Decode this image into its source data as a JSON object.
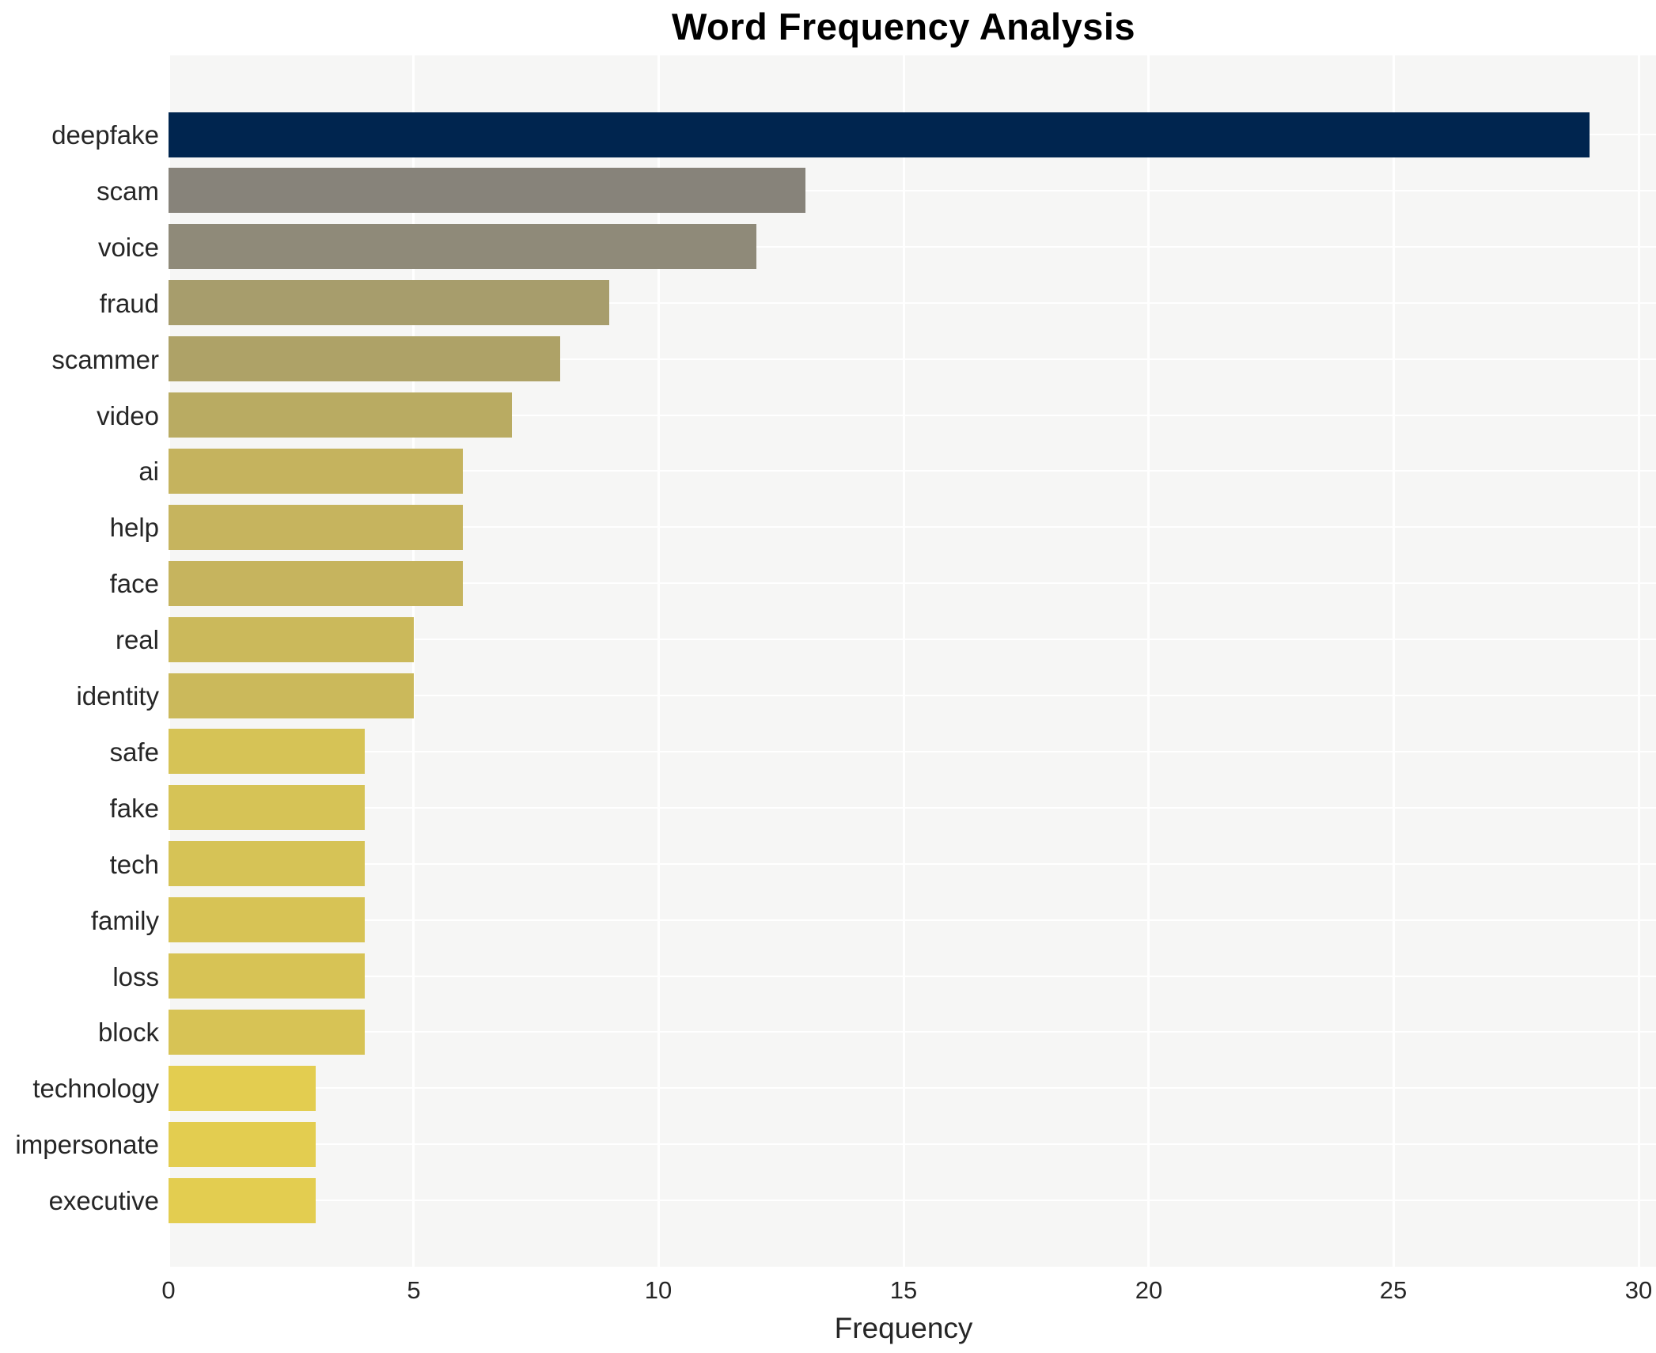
{
  "chart_data": {
    "type": "bar",
    "orientation": "horizontal",
    "title": "Word Frequency Analysis",
    "xlabel": "Frequency",
    "ylabel": "",
    "xlim": [
      0,
      30
    ],
    "xticks": [
      0,
      5,
      10,
      15,
      20,
      25,
      30
    ],
    "grid": true,
    "legend": false,
    "categories": [
      "deepfake",
      "scam",
      "voice",
      "fraud",
      "scammer",
      "video",
      "ai",
      "help",
      "face",
      "real",
      "identity",
      "safe",
      "fake",
      "tech",
      "family",
      "loss",
      "block",
      "technology",
      "impersonate",
      "executive"
    ],
    "values": [
      29,
      13,
      12,
      9,
      8,
      7,
      6,
      6,
      6,
      5,
      5,
      4,
      4,
      4,
      4,
      4,
      4,
      3,
      3,
      3
    ],
    "bar_colors": [
      "#00254f",
      "#87837a",
      "#8f8a79",
      "#a79d6c",
      "#aea267",
      "#b9ab62",
      "#c5b35e",
      "#c6b45e",
      "#c6b45e",
      "#cbb95b",
      "#cbb95b",
      "#d6c356",
      "#d6c356",
      "#d6c356",
      "#d7c355",
      "#d7c355",
      "#d7c355",
      "#e3cd50",
      "#e3cd50",
      "#e3cd50"
    ],
    "colors": {
      "figure_background": "#ffffff",
      "plot_background": "#f6f6f5",
      "gridline": "#ffffff",
      "title_color": "#000000",
      "tick_label_color": "#262626"
    }
  }
}
